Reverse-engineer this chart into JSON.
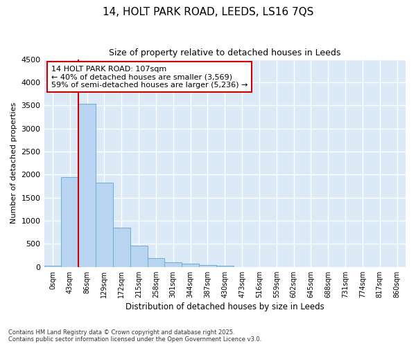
{
  "title_line1": "14, HOLT PARK ROAD, LEEDS, LS16 7QS",
  "title_line2": "Size of property relative to detached houses in Leeds",
  "xlabel": "Distribution of detached houses by size in Leeds",
  "ylabel": "Number of detached properties",
  "bar_color": "#b8d4f0",
  "bar_edge_color": "#6baed6",
  "background_color": "#dce9f7",
  "fig_background_color": "#ffffff",
  "grid_color": "#ffffff",
  "annotation_line_color": "#cc0000",
  "annotation_box_edgecolor": "#cc0000",
  "annotation_text_line1": "14 HOLT PARK ROAD: 107sqm",
  "annotation_text_line2": "← 40% of detached houses are smaller (3,569)",
  "annotation_text_line3": "59% of semi-detached houses are larger (5,236) →",
  "categories": [
    "0sqm",
    "43sqm",
    "86sqm",
    "129sqm",
    "172sqm",
    "215sqm",
    "258sqm",
    "301sqm",
    "344sqm",
    "387sqm",
    "430sqm",
    "473sqm",
    "516sqm",
    "559sqm",
    "602sqm",
    "645sqm",
    "688sqm",
    "731sqm",
    "774sqm",
    "817sqm",
    "860sqm"
  ],
  "bar_heights": [
    30,
    1950,
    3530,
    1820,
    855,
    460,
    185,
    100,
    65,
    40,
    25,
    0,
    0,
    0,
    0,
    0,
    0,
    0,
    0,
    0,
    0
  ],
  "ylim": [
    0,
    4500
  ],
  "yticks": [
    0,
    500,
    1000,
    1500,
    2000,
    2500,
    3000,
    3500,
    4000,
    4500
  ],
  "vline_x_index": 2,
  "footer_line1": "Contains HM Land Registry data © Crown copyright and database right 2025.",
  "footer_line2": "Contains public sector information licensed under the Open Government Licence v3.0."
}
